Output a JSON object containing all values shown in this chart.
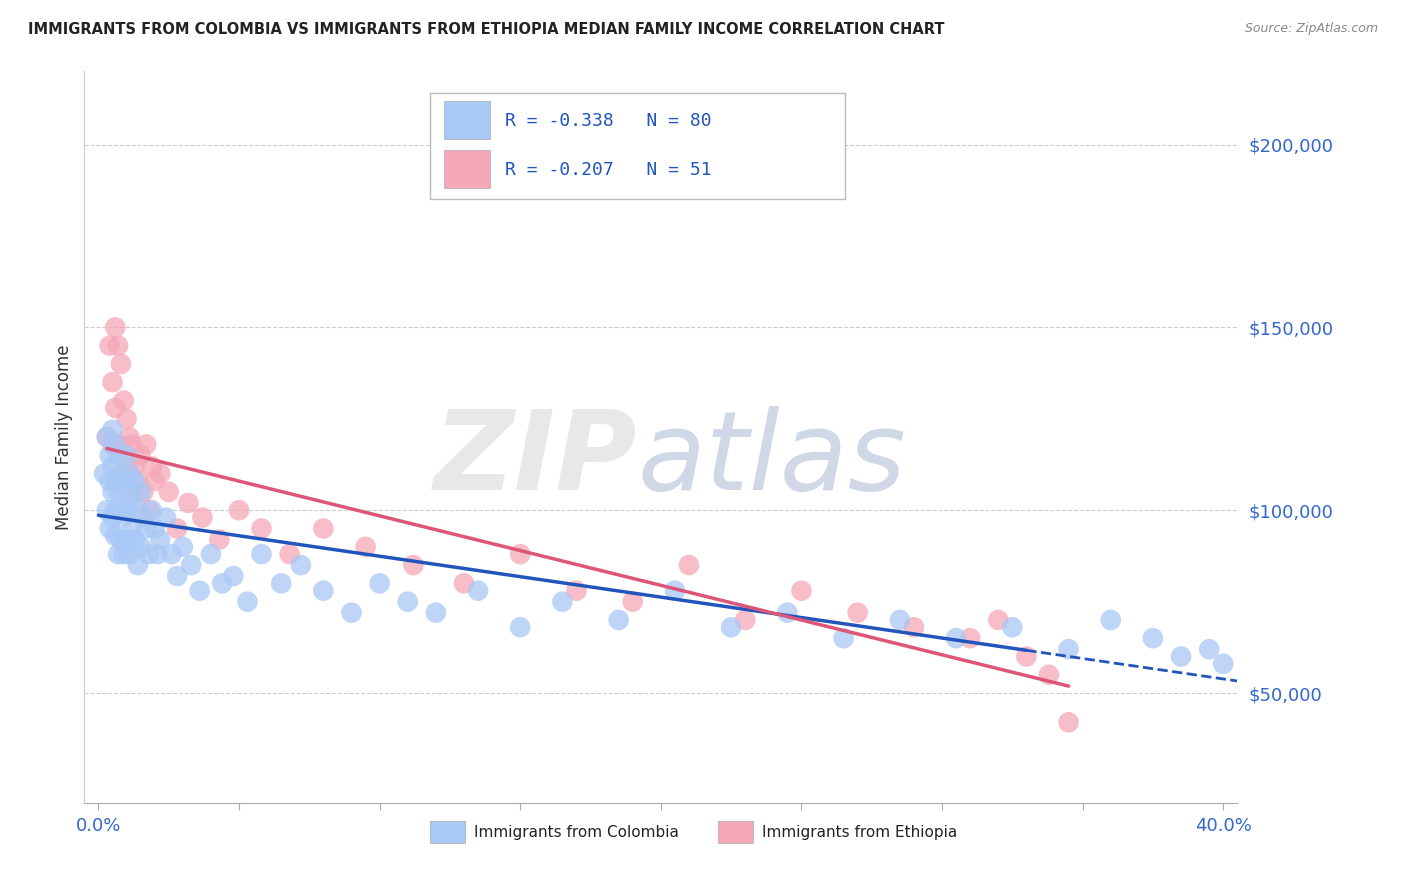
{
  "title": "IMMIGRANTS FROM COLOMBIA VS IMMIGRANTS FROM ETHIOPIA MEDIAN FAMILY INCOME CORRELATION CHART",
  "source": "Source: ZipAtlas.com",
  "xlabel": "",
  "ylabel": "Median Family Income",
  "xlim": [
    -0.005,
    0.405
  ],
  "ylim": [
    20000,
    220000
  ],
  "xtick_positions": [
    0.0,
    0.05,
    0.1,
    0.15,
    0.2,
    0.25,
    0.3,
    0.35,
    0.4
  ],
  "xtick_labels": [
    "0.0%",
    "",
    "",
    "",
    "",
    "",
    "",
    "",
    "40.0%"
  ],
  "ytick_positions": [
    50000,
    100000,
    150000,
    200000
  ],
  "ytick_labels": [
    "$50,000",
    "$100,000",
    "$150,000",
    "$200,000"
  ],
  "colombia_color": "#a8c8f5",
  "ethiopia_color": "#f5a8b8",
  "colombia_line_color": "#2255bb",
  "ethiopia_line_color": "#dd5577",
  "colombia_R": -0.338,
  "colombia_N": 80,
  "ethiopia_R": -0.207,
  "ethiopia_N": 51,
  "background_color": "#ffffff",
  "colombia_scatter_x": [
    0.002,
    0.003,
    0.003,
    0.004,
    0.004,
    0.004,
    0.005,
    0.005,
    0.005,
    0.005,
    0.006,
    0.006,
    0.006,
    0.006,
    0.007,
    0.007,
    0.007,
    0.008,
    0.008,
    0.008,
    0.009,
    0.009,
    0.009,
    0.01,
    0.01,
    0.01,
    0.01,
    0.011,
    0.011,
    0.011,
    0.012,
    0.012,
    0.013,
    0.013,
    0.014,
    0.014,
    0.015,
    0.015,
    0.016,
    0.017,
    0.018,
    0.019,
    0.02,
    0.021,
    0.022,
    0.024,
    0.026,
    0.028,
    0.03,
    0.033,
    0.036,
    0.04,
    0.044,
    0.048,
    0.053,
    0.058,
    0.065,
    0.072,
    0.08,
    0.09,
    0.1,
    0.11,
    0.12,
    0.135,
    0.15,
    0.165,
    0.185,
    0.205,
    0.225,
    0.245,
    0.265,
    0.285,
    0.305,
    0.325,
    0.345,
    0.36,
    0.375,
    0.385,
    0.395,
    0.4
  ],
  "colombia_scatter_y": [
    110000,
    120000,
    100000,
    108000,
    115000,
    95000,
    112000,
    105000,
    98000,
    122000,
    108000,
    100000,
    93000,
    118000,
    115000,
    105000,
    88000,
    110000,
    100000,
    92000,
    108000,
    98000,
    88000,
    115000,
    108000,
    100000,
    92000,
    110000,
    102000,
    88000,
    105000,
    95000,
    108000,
    92000,
    100000,
    85000,
    105000,
    90000,
    98000,
    95000,
    88000,
    100000,
    95000,
    88000,
    92000,
    98000,
    88000,
    82000,
    90000,
    85000,
    78000,
    88000,
    80000,
    82000,
    75000,
    88000,
    80000,
    85000,
    78000,
    72000,
    80000,
    75000,
    72000,
    78000,
    68000,
    75000,
    70000,
    78000,
    68000,
    72000,
    65000,
    70000,
    65000,
    68000,
    62000,
    70000,
    65000,
    60000,
    62000,
    58000
  ],
  "ethiopia_scatter_x": [
    0.003,
    0.004,
    0.005,
    0.005,
    0.006,
    0.006,
    0.007,
    0.007,
    0.008,
    0.008,
    0.009,
    0.009,
    0.01,
    0.01,
    0.011,
    0.011,
    0.012,
    0.013,
    0.014,
    0.015,
    0.016,
    0.017,
    0.018,
    0.019,
    0.02,
    0.022,
    0.025,
    0.028,
    0.032,
    0.037,
    0.043,
    0.05,
    0.058,
    0.068,
    0.08,
    0.095,
    0.112,
    0.13,
    0.15,
    0.17,
    0.19,
    0.21,
    0.23,
    0.25,
    0.27,
    0.29,
    0.31,
    0.32,
    0.33,
    0.338,
    0.345
  ],
  "ethiopia_scatter_y": [
    120000,
    145000,
    135000,
    118000,
    150000,
    128000,
    145000,
    118000,
    140000,
    110000,
    130000,
    108000,
    125000,
    112000,
    120000,
    105000,
    118000,
    112000,
    108000,
    115000,
    105000,
    118000,
    100000,
    112000,
    108000,
    110000,
    105000,
    95000,
    102000,
    98000,
    92000,
    100000,
    95000,
    88000,
    95000,
    90000,
    85000,
    80000,
    88000,
    78000,
    75000,
    85000,
    70000,
    78000,
    72000,
    68000,
    65000,
    70000,
    60000,
    55000,
    42000
  ]
}
